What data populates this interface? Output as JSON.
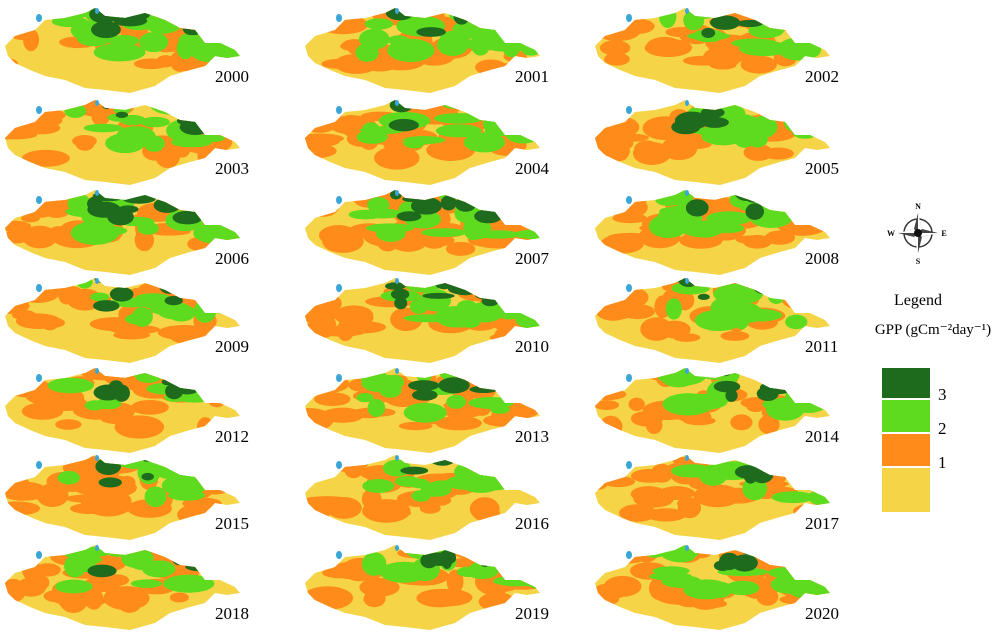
{
  "maps": [
    {
      "year": "2000"
    },
    {
      "year": "2001"
    },
    {
      "year": "2002"
    },
    {
      "year": "2003"
    },
    {
      "year": "2004"
    },
    {
      "year": "2005"
    },
    {
      "year": "2006"
    },
    {
      "year": "2007"
    },
    {
      "year": "2008"
    },
    {
      "year": "2009"
    },
    {
      "year": "2010"
    },
    {
      "year": "2011"
    },
    {
      "year": "2012"
    },
    {
      "year": "2013"
    },
    {
      "year": "2014"
    },
    {
      "year": "2015"
    },
    {
      "year": "2016"
    },
    {
      "year": "2017"
    },
    {
      "year": "2018"
    },
    {
      "year": "2019"
    },
    {
      "year": "2020"
    }
  ],
  "compass": {
    "north": "N",
    "east": "E",
    "south": "S",
    "west": "W"
  },
  "legend": {
    "title": "Legend",
    "unit": "GPP (gCm⁻²day⁻¹)",
    "items": [
      {
        "label": "3",
        "color": "#1e6b1e"
      },
      {
        "label": "2",
        "color": "#5fdb1f"
      },
      {
        "label": "1",
        "color": "#ff8c1a"
      },
      {
        "label": "",
        "color": "#f5d547"
      }
    ]
  }
}
